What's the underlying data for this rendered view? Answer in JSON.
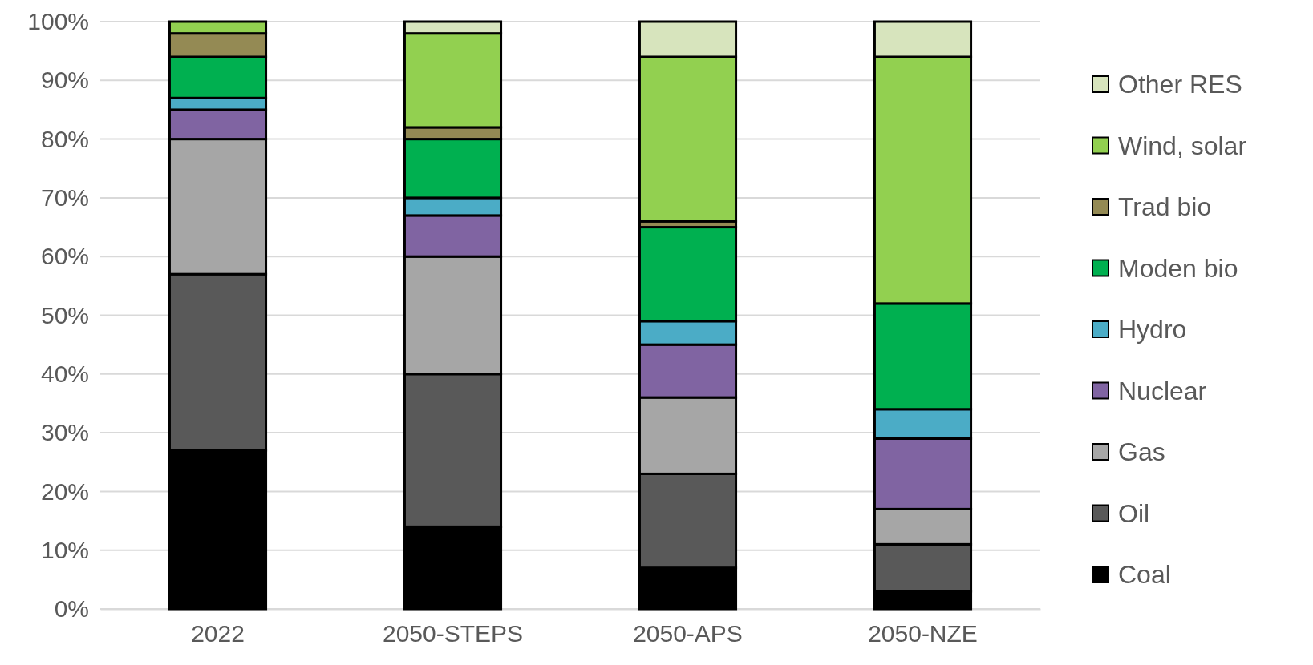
{
  "chart_data": {
    "type": "bar",
    "stacked": true,
    "categories": [
      "2022",
      "2050-STEPS",
      "2050-APS",
      "2050-NZE"
    ],
    "series": [
      {
        "name": "Coal",
        "color": "#000000",
        "values": [
          27,
          14,
          7,
          3
        ]
      },
      {
        "name": "Oil",
        "color": "#595959",
        "values": [
          30,
          26,
          16,
          8
        ]
      },
      {
        "name": "Gas",
        "color": "#a6a6a6",
        "values": [
          23,
          20,
          13,
          6
        ]
      },
      {
        "name": "Nuclear",
        "color": "#8064a2",
        "values": [
          5,
          7,
          9,
          12
        ]
      },
      {
        "name": "Hydro",
        "color": "#4bacc6",
        "values": [
          2,
          3,
          4,
          5
        ]
      },
      {
        "name": "Moden bio",
        "color": "#00b050",
        "values": [
          7,
          10,
          16,
          18
        ]
      },
      {
        "name": "Trad bio",
        "color": "#948a54",
        "values": [
          4,
          2,
          1,
          0
        ]
      },
      {
        "name": "Wind, solar",
        "color": "#92d050",
        "values": [
          2,
          16,
          28,
          42
        ]
      },
      {
        "name": "Other RES",
        "color": "#d7e4bd",
        "values": [
          0,
          2,
          6,
          6
        ]
      }
    ],
    "ylim": [
      0,
      100
    ],
    "yticks": [
      {
        "value": 0,
        "label": "0%"
      },
      {
        "value": 10,
        "label": "10%"
      },
      {
        "value": 20,
        "label": "20%"
      },
      {
        "value": 30,
        "label": "30%"
      },
      {
        "value": 40,
        "label": "40%"
      },
      {
        "value": 50,
        "label": "50%"
      },
      {
        "value": 60,
        "label": "60%"
      },
      {
        "value": 70,
        "label": "70%"
      },
      {
        "value": 80,
        "label": "80%"
      },
      {
        "value": 90,
        "label": "90%"
      },
      {
        "value": 100,
        "label": "100%"
      }
    ],
    "grid": "y",
    "legend": "right"
  }
}
